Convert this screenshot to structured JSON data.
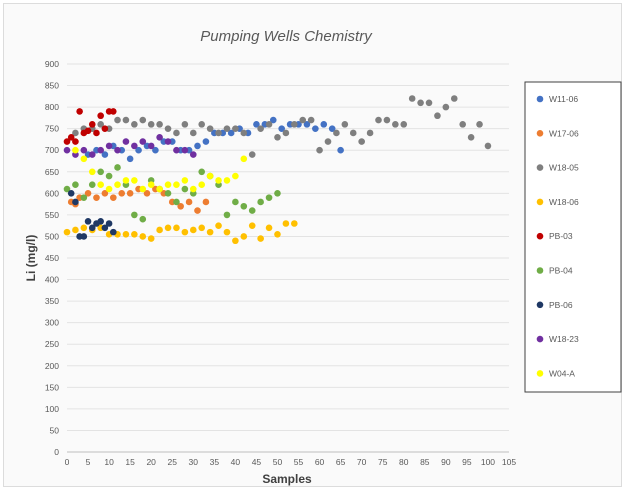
{
  "chart_data": {
    "type": "scatter",
    "title": "Pumping Wells Chemistry",
    "xlabel": "Samples",
    "ylabel": "Li (mg/l)",
    "xlim": [
      0,
      105
    ],
    "ylim": [
      0,
      900
    ],
    "xticks": [
      0,
      5,
      10,
      15,
      20,
      25,
      30,
      35,
      40,
      45,
      50,
      55,
      60,
      65,
      70,
      75,
      80,
      85,
      90,
      95,
      100,
      105
    ],
    "yticks": [
      0,
      50,
      100,
      150,
      200,
      250,
      300,
      350,
      400,
      450,
      500,
      550,
      600,
      650,
      700,
      750,
      800,
      850,
      900
    ],
    "grid": true,
    "legend_position": "right",
    "series": [
      {
        "name": "W11-06",
        "color": "#4472c4",
        "x": [
          5,
          7,
          9,
          11,
          13,
          15,
          17,
          19,
          21,
          23,
          25,
          27,
          29,
          31,
          33,
          35,
          37,
          39,
          41,
          43,
          45,
          47,
          49,
          51,
          53,
          55,
          57,
          59,
          61,
          63,
          65
        ],
        "y": [
          690,
          700,
          690,
          710,
          700,
          680,
          700,
          710,
          700,
          720,
          720,
          700,
          700,
          710,
          720,
          740,
          740,
          740,
          750,
          740,
          760,
          760,
          770,
          750,
          760,
          760,
          760,
          750,
          760,
          750,
          700
        ]
      },
      {
        "name": "W17-06",
        "color": "#ed7d31",
        "x": [
          1,
          2,
          3,
          5,
          7,
          9,
          11,
          13,
          15,
          17,
          19,
          21,
          23,
          25,
          27,
          29,
          31,
          33
        ],
        "y": [
          580,
          575,
          590,
          600,
          590,
          600,
          590,
          600,
          600,
          610,
          600,
          610,
          600,
          580,
          570,
          580,
          560,
          580
        ]
      },
      {
        "name": "W18-05",
        "color": "#7f7f7f",
        "x": [
          2,
          4,
          6,
          8,
          10,
          12,
          14,
          16,
          18,
          20,
          22,
          24,
          26,
          28,
          30,
          32,
          34,
          36,
          38,
          40,
          42,
          44,
          46,
          48,
          50,
          52,
          54,
          56,
          58,
          60,
          62,
          64,
          66,
          68,
          70,
          72,
          74,
          76,
          78,
          80,
          82,
          84,
          86,
          88,
          90,
          92,
          94,
          96,
          98,
          100
        ],
        "y": [
          740,
          750,
          750,
          760,
          750,
          770,
          770,
          760,
          770,
          760,
          760,
          750,
          740,
          760,
          740,
          760,
          750,
          740,
          750,
          750,
          740,
          690,
          750,
          760,
          730,
          740,
          760,
          770,
          770,
          700,
          720,
          740,
          760,
          740,
          720,
          740,
          770,
          770,
          760,
          760,
          820,
          810,
          810,
          780,
          800,
          820,
          760,
          730,
          760,
          710
        ]
      },
      {
        "name": "W18-06",
        "color": "#ffc000",
        "x": [
          0,
          2,
          4,
          6,
          8,
          10,
          12,
          14,
          16,
          18,
          20,
          22,
          24,
          26,
          28,
          30,
          32,
          34,
          36,
          38,
          40,
          42,
          44,
          46,
          48,
          50,
          52,
          54
        ],
        "y": [
          510,
          515,
          520,
          515,
          520,
          505,
          505,
          505,
          505,
          500,
          495,
          515,
          520,
          520,
          510,
          515,
          520,
          510,
          525,
          510,
          490,
          500,
          525,
          495,
          520,
          505,
          530,
          530
        ]
      },
      {
        "name": "PB-03",
        "color": "#c00000",
        "x": [
          0,
          1,
          2,
          3,
          4,
          5,
          6,
          7,
          8,
          9,
          10,
          11
        ],
        "y": [
          720,
          730,
          720,
          790,
          740,
          745,
          760,
          740,
          780,
          750,
          790,
          790
        ]
      },
      {
        "name": "PB-04",
        "color": "#70ad47",
        "x": [
          0,
          2,
          4,
          6,
          8,
          10,
          12,
          14,
          16,
          18,
          20,
          22,
          24,
          26,
          28,
          30,
          32,
          34,
          36,
          38,
          40,
          42,
          44,
          46,
          48,
          50
        ],
        "y": [
          610,
          620,
          590,
          620,
          650,
          640,
          660,
          620,
          550,
          540,
          630,
          610,
          600,
          580,
          610,
          600,
          650,
          640,
          620,
          550,
          580,
          570,
          560,
          580,
          590,
          600
        ]
      },
      {
        "name": "PB-06",
        "color": "#1f3864",
        "x": [
          1,
          2,
          3,
          4,
          5,
          6,
          7,
          8,
          9,
          10,
          11
        ],
        "y": [
          600,
          580,
          500,
          500,
          535,
          520,
          530,
          535,
          520,
          530,
          510
        ]
      },
      {
        "name": "W18-23",
        "color": "#7030a0",
        "x": [
          0,
          2,
          4,
          6,
          8,
          10,
          12,
          14,
          16,
          18,
          20,
          22,
          24,
          26,
          28,
          30
        ],
        "y": [
          700,
          690,
          700,
          690,
          700,
          710,
          700,
          720,
          710,
          720,
          710,
          730,
          720,
          700,
          700,
          690
        ]
      },
      {
        "name": "W04-A",
        "color": "#ffff00",
        "x": [
          2,
          4,
          6,
          8,
          10,
          12,
          14,
          16,
          18,
          20,
          22,
          24,
          26,
          28,
          30,
          32,
          34,
          36,
          38,
          40,
          42
        ],
        "y": [
          700,
          680,
          650,
          620,
          610,
          620,
          630,
          630,
          610,
          620,
          610,
          620,
          620,
          630,
          610,
          620,
          640,
          630,
          630,
          640,
          680
        ]
      }
    ]
  }
}
